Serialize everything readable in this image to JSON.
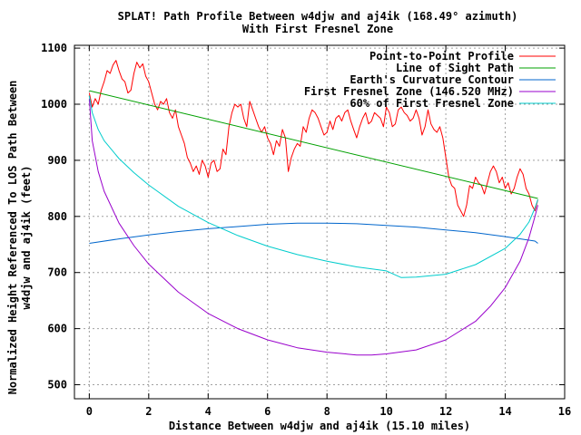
{
  "chart_data": {
    "type": "line",
    "title": [
      "SPLAT! Path Profile Between w4djw and aj4ik (168.49° azimuth)",
      "With First Fresnel Zone"
    ],
    "xlabel": "Distance Between w4djw and aj4ik (15.10 miles)",
    "ylabel": [
      "Normalized Height Referenced To LOS Path Between",
      "w4djw and aj4ik (feet)"
    ],
    "xlim": [
      -0.5,
      16
    ],
    "ylim": [
      475,
      1105
    ],
    "xticks": [
      0,
      2,
      4,
      6,
      8,
      10,
      12,
      14,
      16
    ],
    "yticks": [
      500,
      600,
      700,
      800,
      900,
      1000,
      1100
    ],
    "grid": true,
    "legend_position": "top-right",
    "series": [
      {
        "name": "Point-to-Point Profile",
        "color": "#ff0000",
        "x": [
          0,
          0.1,
          0.2,
          0.3,
          0.4,
          0.5,
          0.6,
          0.7,
          0.8,
          0.9,
          1.0,
          1.1,
          1.2,
          1.3,
          1.4,
          1.5,
          1.6,
          1.7,
          1.8,
          1.9,
          2.0,
          2.1,
          2.2,
          2.3,
          2.4,
          2.5,
          2.6,
          2.7,
          2.8,
          2.9,
          3.0,
          3.1,
          3.2,
          3.3,
          3.4,
          3.5,
          3.6,
          3.7,
          3.8,
          3.9,
          4.0,
          4.1,
          4.2,
          4.3,
          4.4,
          4.5,
          4.6,
          4.7,
          4.8,
          4.9,
          5.0,
          5.1,
          5.2,
          5.3,
          5.4,
          5.5,
          5.6,
          5.7,
          5.8,
          5.9,
          6.0,
          6.1,
          6.2,
          6.3,
          6.4,
          6.5,
          6.6,
          6.7,
          6.8,
          6.9,
          7.0,
          7.1,
          7.2,
          7.3,
          7.4,
          7.5,
          7.6,
          7.7,
          7.8,
          7.9,
          8.0,
          8.1,
          8.2,
          8.3,
          8.4,
          8.5,
          8.6,
          8.7,
          8.8,
          8.9,
          9.0,
          9.1,
          9.2,
          9.3,
          9.4,
          9.5,
          9.6,
          9.7,
          9.8,
          9.9,
          10.0,
          10.1,
          10.2,
          10.3,
          10.4,
          10.5,
          10.6,
          10.7,
          10.8,
          10.9,
          11.0,
          11.1,
          11.2,
          11.3,
          11.4,
          11.5,
          11.6,
          11.7,
          11.8,
          11.9,
          12.0,
          12.1,
          12.2,
          12.3,
          12.4,
          12.5,
          12.6,
          12.7,
          12.8,
          12.9,
          13.0,
          13.1,
          13.2,
          13.3,
          13.4,
          13.5,
          13.6,
          13.7,
          13.8,
          13.9,
          14.0,
          14.1,
          14.2,
          14.3,
          14.4,
          14.5,
          14.6,
          14.7,
          14.8,
          14.9,
          15.0,
          15.1
        ],
        "y": [
          1020,
          995,
          1010,
          1000,
          1025,
          1040,
          1060,
          1055,
          1070,
          1078,
          1060,
          1045,
          1040,
          1020,
          1025,
          1055,
          1075,
          1065,
          1072,
          1050,
          1040,
          1020,
          1000,
          990,
          1005,
          1000,
          1010,
          985,
          975,
          990,
          960,
          945,
          930,
          905,
          895,
          880,
          890,
          875,
          900,
          890,
          870,
          895,
          900,
          880,
          885,
          920,
          910,
          960,
          985,
          1000,
          995,
          1000,
          975,
          960,
          1005,
          990,
          975,
          960,
          950,
          960,
          940,
          930,
          910,
          935,
          925,
          955,
          940,
          880,
          905,
          920,
          930,
          925,
          960,
          950,
          975,
          990,
          985,
          975,
          960,
          945,
          950,
          970,
          955,
          975,
          980,
          970,
          985,
          990,
          970,
          955,
          940,
          960,
          975,
          985,
          965,
          970,
          985,
          980,
          975,
          960,
          995,
          985,
          960,
          965,
          990,
          995,
          985,
          980,
          970,
          975,
          990,
          975,
          945,
          960,
          990,
          965,
          955,
          950,
          960,
          940,
          905,
          870,
          855,
          850,
          820,
          810,
          800,
          820,
          855,
          850,
          870,
          860,
          855,
          840,
          860,
          880,
          890,
          880,
          860,
          870,
          850,
          860,
          840,
          850,
          870,
          885,
          875,
          850,
          840,
          820,
          810,
          830
        ]
      },
      {
        "name": "Line of Sight Path",
        "color": "#00a000",
        "x": [
          0,
          15.1
        ],
        "y": [
          1024,
          832
        ]
      },
      {
        "name": "Earth's Curvature Contour",
        "color": "#0066cc",
        "x": [
          0,
          1,
          2,
          3,
          4,
          5,
          6,
          7,
          7.55,
          8,
          9,
          10,
          11,
          12,
          13,
          14,
          15,
          15.1
        ],
        "y": [
          752,
          760,
          767,
          773,
          778,
          782,
          786,
          788,
          788,
          788,
          787,
          784,
          781,
          776,
          771,
          764,
          756,
          752
        ]
      },
      {
        "name": "First Fresnel Zone (146.520 MHz)",
        "color": "#9900cc",
        "x": [
          0,
          0.1,
          0.3,
          0.5,
          1,
          1.5,
          2,
          3,
          4,
          5,
          6,
          7,
          8,
          9,
          9.5,
          10,
          11,
          12,
          13,
          13.5,
          14,
          14.5,
          14.8,
          15,
          15.1
        ],
        "y": [
          1010,
          935,
          880,
          845,
          788,
          748,
          715,
          665,
          627,
          600,
          580,
          566,
          558,
          553,
          553,
          555,
          562,
          580,
          613,
          640,
          673,
          720,
          762,
          800,
          820
        ]
      },
      {
        "name": "60% of First Fresnel Zone",
        "color": "#00cccc",
        "x": [
          0,
          0.1,
          0.3,
          0.5,
          1,
          1.5,
          2,
          3,
          4,
          5,
          6,
          7,
          8,
          9,
          10,
          10.5,
          11,
          12,
          13,
          14,
          14.5,
          14.8,
          15,
          15.1
        ],
        "y": [
          1015,
          985,
          955,
          935,
          903,
          878,
          856,
          818,
          789,
          766,
          747,
          732,
          720,
          710,
          703,
          691,
          692,
          697,
          714,
          743,
          768,
          790,
          815,
          830
        ]
      }
    ]
  }
}
